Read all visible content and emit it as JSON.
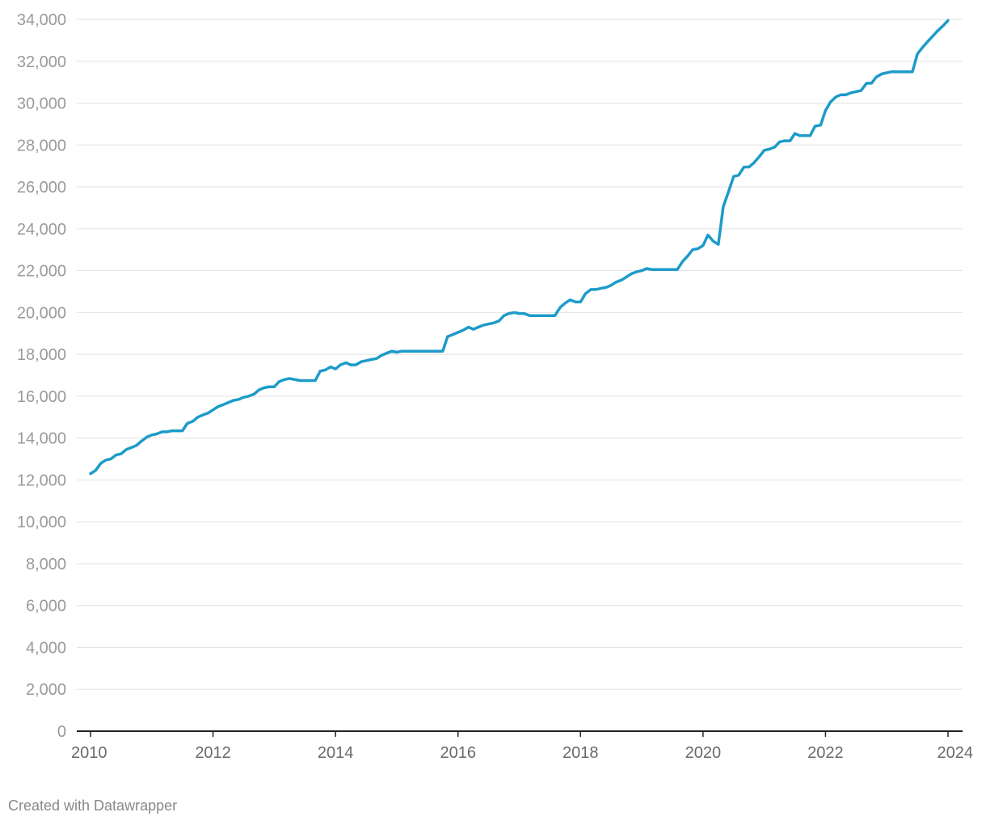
{
  "chart_data": {
    "type": "line",
    "title": "",
    "xlabel": "",
    "ylabel": "",
    "xlim": [
      2010,
      2024
    ],
    "ylim": [
      0,
      34000
    ],
    "y_ticks": [
      0,
      2000,
      4000,
      6000,
      8000,
      10000,
      12000,
      14000,
      16000,
      18000,
      20000,
      22000,
      24000,
      26000,
      28000,
      30000,
      32000,
      34000
    ],
    "y_tick_labels": [
      "0",
      "2,000",
      "4,000",
      "6,000",
      "8,000",
      "10,000",
      "12,000",
      "14,000",
      "16,000",
      "18,000",
      "20,000",
      "22,000",
      "24,000",
      "26,000",
      "28,000",
      "30,000",
      "32,000",
      "34,000"
    ],
    "x_ticks": [
      2010,
      2012,
      2014,
      2016,
      2018,
      2020,
      2022,
      2024
    ],
    "x_tick_labels": [
      "2010",
      "2012",
      "2014",
      "2016",
      "2018",
      "2020",
      "2022",
      "2024"
    ],
    "grid": "horizontal",
    "legend": "none",
    "series": [
      {
        "color": "#1d9bc9",
        "points": [
          [
            2010.0,
            12300
          ],
          [
            2010.08,
            12450
          ],
          [
            2010.17,
            12800
          ],
          [
            2010.25,
            12950
          ],
          [
            2010.33,
            13000
          ],
          [
            2010.42,
            13200
          ],
          [
            2010.5,
            13250
          ],
          [
            2010.58,
            13450
          ],
          [
            2010.67,
            13550
          ],
          [
            2010.75,
            13650
          ],
          [
            2010.83,
            13850
          ],
          [
            2010.92,
            14050
          ],
          [
            2011.0,
            14150
          ],
          [
            2011.08,
            14200
          ],
          [
            2011.17,
            14300
          ],
          [
            2011.25,
            14300
          ],
          [
            2011.33,
            14350
          ],
          [
            2011.42,
            14350
          ],
          [
            2011.5,
            14350
          ],
          [
            2011.58,
            14700
          ],
          [
            2011.67,
            14800
          ],
          [
            2011.75,
            15000
          ],
          [
            2011.83,
            15100
          ],
          [
            2011.92,
            15200
          ],
          [
            2012.0,
            15350
          ],
          [
            2012.08,
            15500
          ],
          [
            2012.17,
            15600
          ],
          [
            2012.25,
            15700
          ],
          [
            2012.33,
            15800
          ],
          [
            2012.42,
            15850
          ],
          [
            2012.5,
            15950
          ],
          [
            2012.58,
            16000
          ],
          [
            2012.67,
            16100
          ],
          [
            2012.75,
            16300
          ],
          [
            2012.83,
            16400
          ],
          [
            2012.92,
            16450
          ],
          [
            2013.0,
            16450
          ],
          [
            2013.08,
            16700
          ],
          [
            2013.17,
            16800
          ],
          [
            2013.25,
            16850
          ],
          [
            2013.33,
            16800
          ],
          [
            2013.42,
            16750
          ],
          [
            2013.5,
            16750
          ],
          [
            2013.58,
            16750
          ],
          [
            2013.67,
            16750
          ],
          [
            2013.75,
            17200
          ],
          [
            2013.83,
            17250
          ],
          [
            2013.92,
            17400
          ],
          [
            2014.0,
            17300
          ],
          [
            2014.08,
            17500
          ],
          [
            2014.17,
            17600
          ],
          [
            2014.25,
            17500
          ],
          [
            2014.33,
            17500
          ],
          [
            2014.42,
            17650
          ],
          [
            2014.5,
            17700
          ],
          [
            2014.58,
            17750
          ],
          [
            2014.67,
            17800
          ],
          [
            2014.75,
            17950
          ],
          [
            2014.83,
            18050
          ],
          [
            2014.92,
            18150
          ],
          [
            2015.0,
            18100
          ],
          [
            2015.08,
            18150
          ],
          [
            2015.17,
            18150
          ],
          [
            2015.5,
            18150
          ],
          [
            2015.75,
            18150
          ],
          [
            2015.83,
            18850
          ],
          [
            2015.92,
            18950
          ],
          [
            2016.0,
            19050
          ],
          [
            2016.08,
            19150
          ],
          [
            2016.17,
            19300
          ],
          [
            2016.25,
            19200
          ],
          [
            2016.33,
            19300
          ],
          [
            2016.42,
            19400
          ],
          [
            2016.5,
            19450
          ],
          [
            2016.58,
            19500
          ],
          [
            2016.67,
            19600
          ],
          [
            2016.75,
            19850
          ],
          [
            2016.83,
            19950
          ],
          [
            2016.92,
            20000
          ],
          [
            2017.0,
            19950
          ],
          [
            2017.08,
            19950
          ],
          [
            2017.17,
            19850
          ],
          [
            2017.25,
            19850
          ],
          [
            2017.5,
            19850
          ],
          [
            2017.58,
            19850
          ],
          [
            2017.67,
            20250
          ],
          [
            2017.75,
            20450
          ],
          [
            2017.83,
            20600
          ],
          [
            2017.92,
            20500
          ],
          [
            2018.0,
            20500
          ],
          [
            2018.08,
            20900
          ],
          [
            2018.17,
            21100
          ],
          [
            2018.25,
            21100
          ],
          [
            2018.33,
            21150
          ],
          [
            2018.42,
            21200
          ],
          [
            2018.5,
            21300
          ],
          [
            2018.58,
            21450
          ],
          [
            2018.67,
            21550
          ],
          [
            2018.75,
            21700
          ],
          [
            2018.83,
            21850
          ],
          [
            2018.92,
            21950
          ],
          [
            2019.0,
            22000
          ],
          [
            2019.08,
            22100
          ],
          [
            2019.17,
            22050
          ],
          [
            2019.25,
            22050
          ],
          [
            2019.5,
            22050
          ],
          [
            2019.58,
            22050
          ],
          [
            2019.67,
            22450
          ],
          [
            2019.75,
            22700
          ],
          [
            2019.83,
            23000
          ],
          [
            2019.92,
            23050
          ],
          [
            2020.0,
            23200
          ],
          [
            2020.08,
            23700
          ],
          [
            2020.17,
            23400
          ],
          [
            2020.25,
            23250
          ],
          [
            2020.33,
            25050
          ],
          [
            2020.42,
            25800
          ],
          [
            2020.5,
            26500
          ],
          [
            2020.58,
            26550
          ],
          [
            2020.67,
            26950
          ],
          [
            2020.75,
            26950
          ],
          [
            2020.83,
            27150
          ],
          [
            2020.92,
            27450
          ],
          [
            2021.0,
            27750
          ],
          [
            2021.08,
            27800
          ],
          [
            2021.17,
            27900
          ],
          [
            2021.25,
            28150
          ],
          [
            2021.33,
            28200
          ],
          [
            2021.42,
            28200
          ],
          [
            2021.5,
            28550
          ],
          [
            2021.58,
            28450
          ],
          [
            2021.67,
            28450
          ],
          [
            2021.75,
            28450
          ],
          [
            2021.83,
            28900
          ],
          [
            2021.92,
            28950
          ],
          [
            2022.0,
            29650
          ],
          [
            2022.08,
            30050
          ],
          [
            2022.17,
            30300
          ],
          [
            2022.25,
            30400
          ],
          [
            2022.33,
            30400
          ],
          [
            2022.42,
            30500
          ],
          [
            2022.5,
            30550
          ],
          [
            2022.58,
            30600
          ],
          [
            2022.67,
            30950
          ],
          [
            2022.75,
            30950
          ],
          [
            2022.83,
            31250
          ],
          [
            2022.92,
            31400
          ],
          [
            2023.0,
            31450
          ],
          [
            2023.08,
            31500
          ],
          [
            2023.17,
            31500
          ],
          [
            2023.33,
            31500
          ],
          [
            2023.42,
            31500
          ],
          [
            2023.5,
            32350
          ],
          [
            2023.58,
            32650
          ],
          [
            2023.67,
            32950
          ],
          [
            2023.75,
            33200
          ],
          [
            2023.83,
            33450
          ],
          [
            2023.92,
            33700
          ],
          [
            2024.0,
            33950
          ]
        ]
      }
    ]
  },
  "footer": {
    "credit": "Created with Datawrapper"
  }
}
